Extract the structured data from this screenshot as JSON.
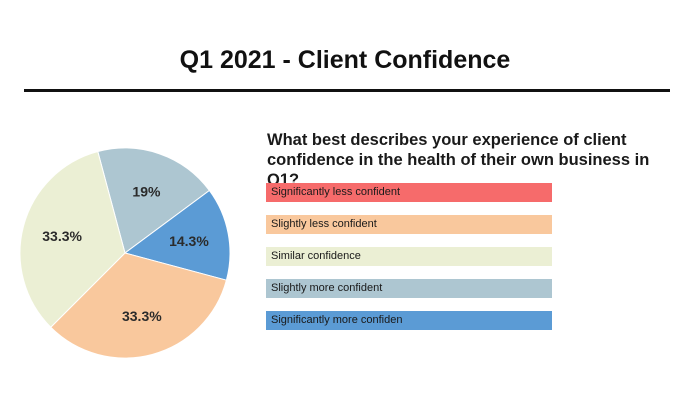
{
  "header": {
    "title": "Q1 2021 - Client Confidence"
  },
  "question": "What best describes your experience of client confidence in the health of their own business in Q1?",
  "colors": {
    "significantly_less": "#f66b6b",
    "slightly_less": "#f9c89d",
    "similar": "#ebefd4",
    "slightly_more": "#adc6d1",
    "significantly_more": "#5b9bd5"
  },
  "chart_data": {
    "type": "pie",
    "title": "Q1 2021 - Client Confidence",
    "slices": [
      {
        "label": "Significantly less confident",
        "value": 0,
        "display": "",
        "color": "#f66b6b"
      },
      {
        "label": "Slightly less confident",
        "value": 33.3,
        "display": "33.3%",
        "color": "#f9c89d"
      },
      {
        "label": "Similar confidence",
        "value": 33.3,
        "display": "33.3%",
        "color": "#ebefd4"
      },
      {
        "label": "Slightly more confident",
        "value": 19,
        "display": "19%",
        "color": "#adc6d1"
      },
      {
        "label": "Significantly more confiden",
        "value": 14.3,
        "display": "14.3%",
        "color": "#5b9bd5"
      }
    ],
    "legend_position": "right"
  }
}
